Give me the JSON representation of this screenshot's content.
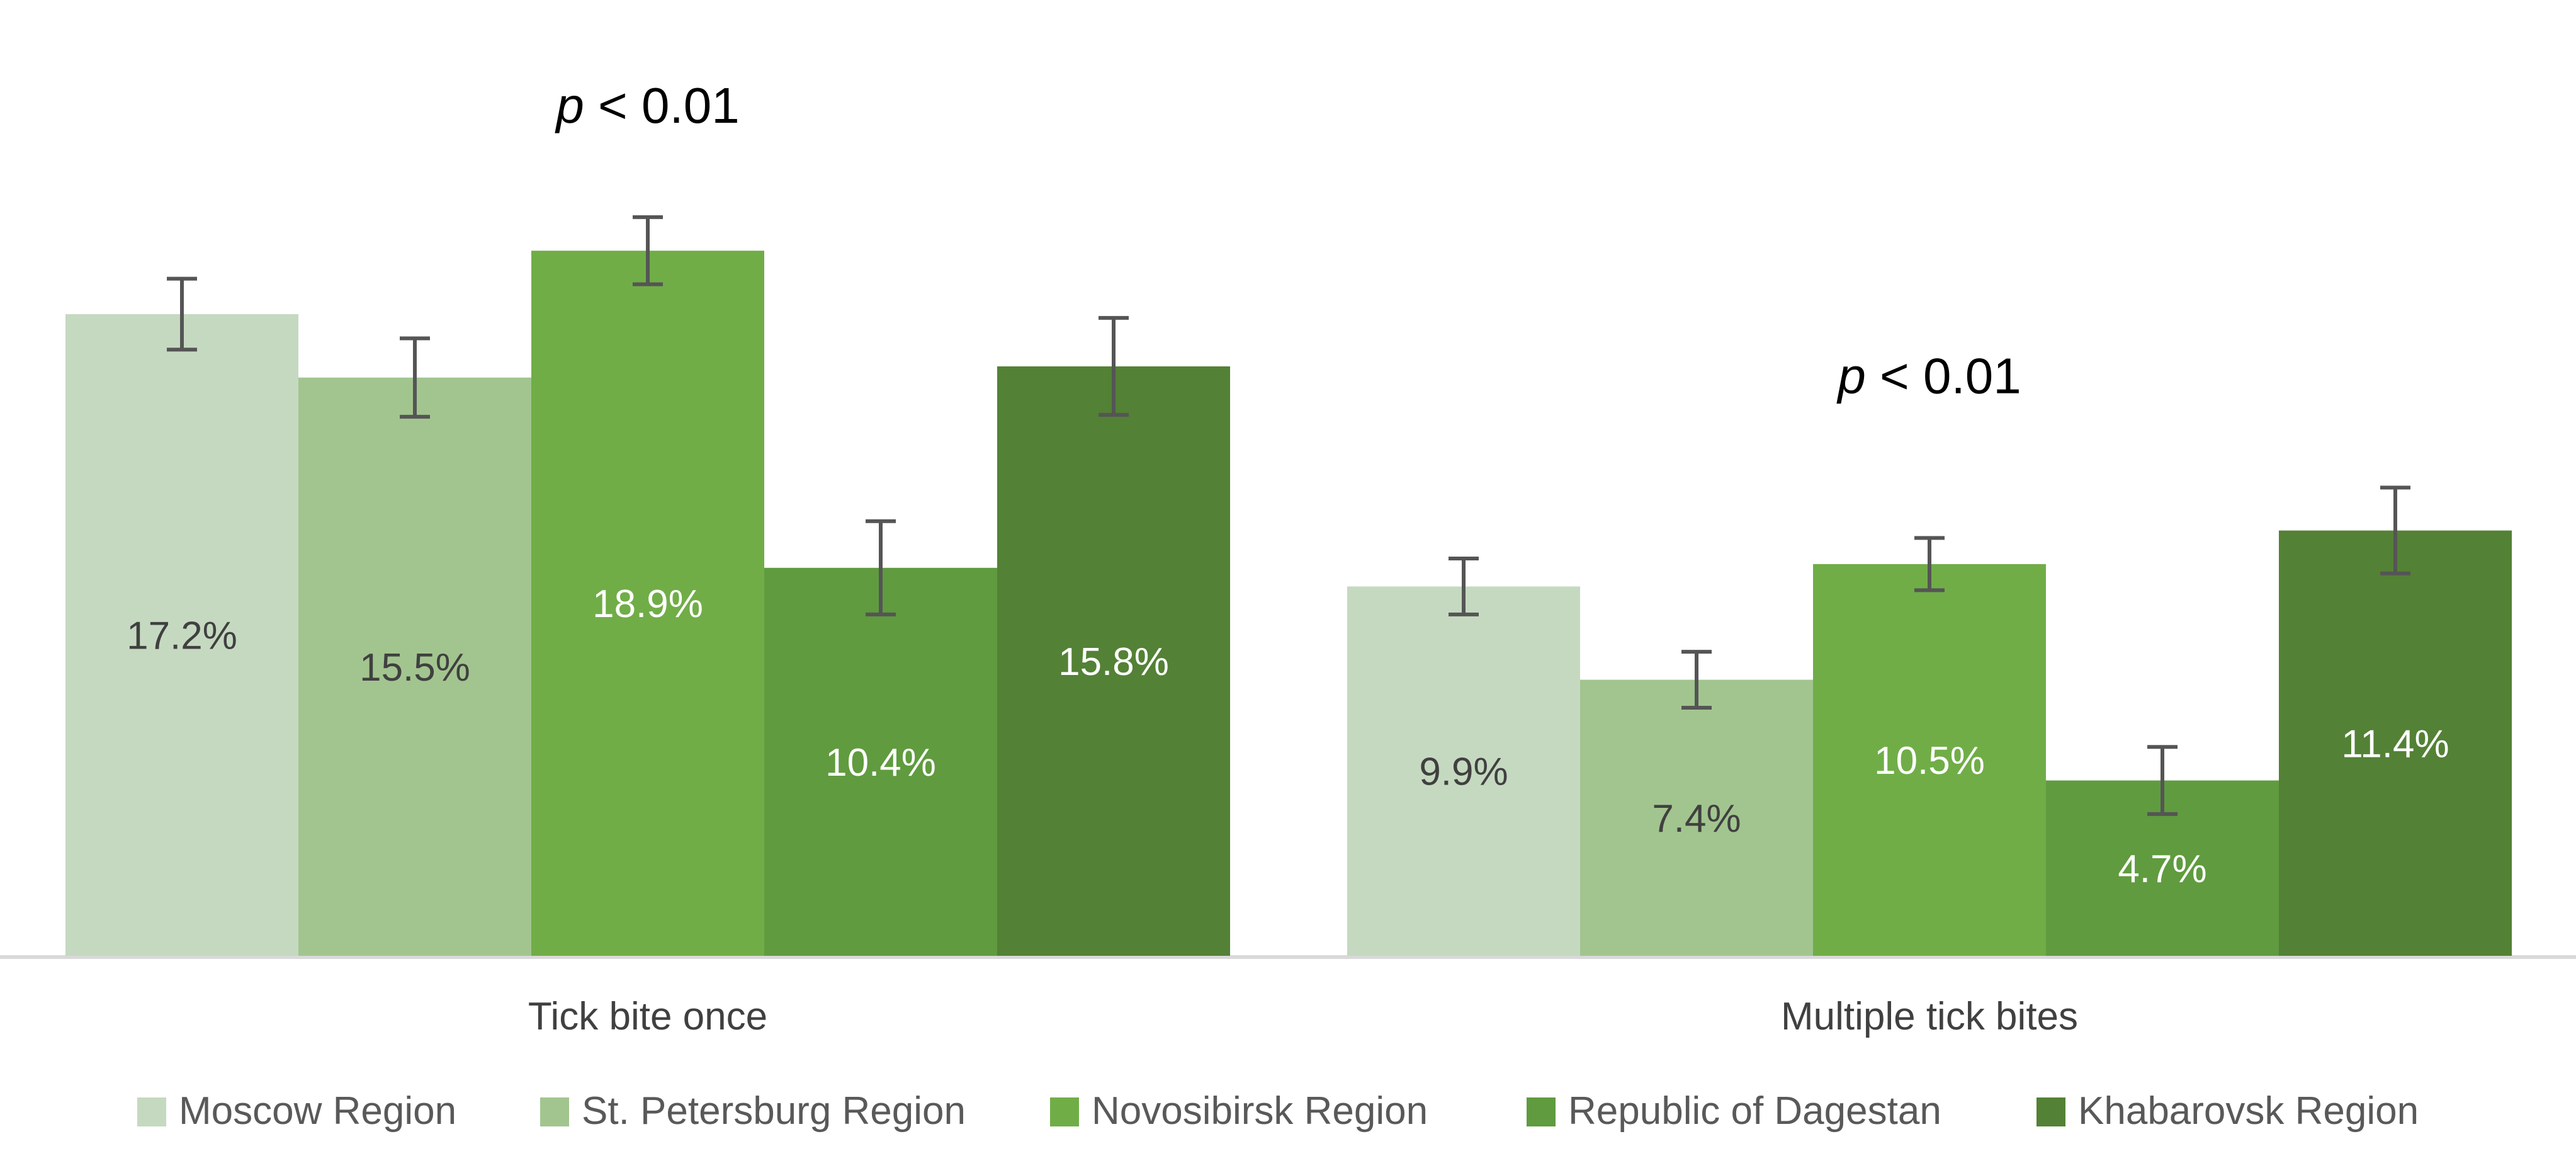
{
  "chart_data": {
    "type": "bar",
    "categories": [
      "Tick bite once",
      "Multiple tick bites"
    ],
    "series": [
      {
        "name": "Moscow Region",
        "color": "#c5d9c0",
        "label_color": "#404040",
        "values": [
          17.2,
          9.9
        ],
        "error": [
          0.95,
          0.75
        ],
        "data_labels": [
          "17.2%",
          "9.9%"
        ]
      },
      {
        "name": "St. Petersburg Region",
        "color": "#a2c58f",
        "label_color": "#404040",
        "values": [
          15.5,
          7.4
        ],
        "error": [
          1.05,
          0.75
        ],
        "data_labels": [
          "15.5%",
          "7.4%"
        ]
      },
      {
        "name": "Novosibirsk Region",
        "color": "#70ad47",
        "label_color": "#ffffff",
        "values": [
          18.9,
          10.5
        ],
        "error": [
          0.9,
          0.7
        ],
        "data_labels": [
          "18.9%",
          "10.5%"
        ]
      },
      {
        "name": "Republic of Dagestan",
        "color": "#609b3f",
        "label_color": "#ffffff",
        "values": [
          10.4,
          4.7
        ],
        "error": [
          1.25,
          0.9
        ],
        "data_labels": [
          "10.4%",
          "4.7%"
        ]
      },
      {
        "name": "Khabarovsk Region",
        "color": "#538135",
        "label_color": "#ffffff",
        "values": [
          15.8,
          11.4
        ],
        "error": [
          1.3,
          1.15
        ],
        "data_labels": [
          "15.8%",
          "11.4%"
        ]
      }
    ],
    "annotations": [
      {
        "category": "Tick bite once",
        "italic": "p",
        "rest": " < 0.01"
      },
      {
        "category": "Multiple tick bites",
        "italic": "p",
        "rest": " < 0.01"
      }
    ],
    "ylim": [
      0,
      22
    ],
    "grid": false,
    "legend": "bottom"
  }
}
